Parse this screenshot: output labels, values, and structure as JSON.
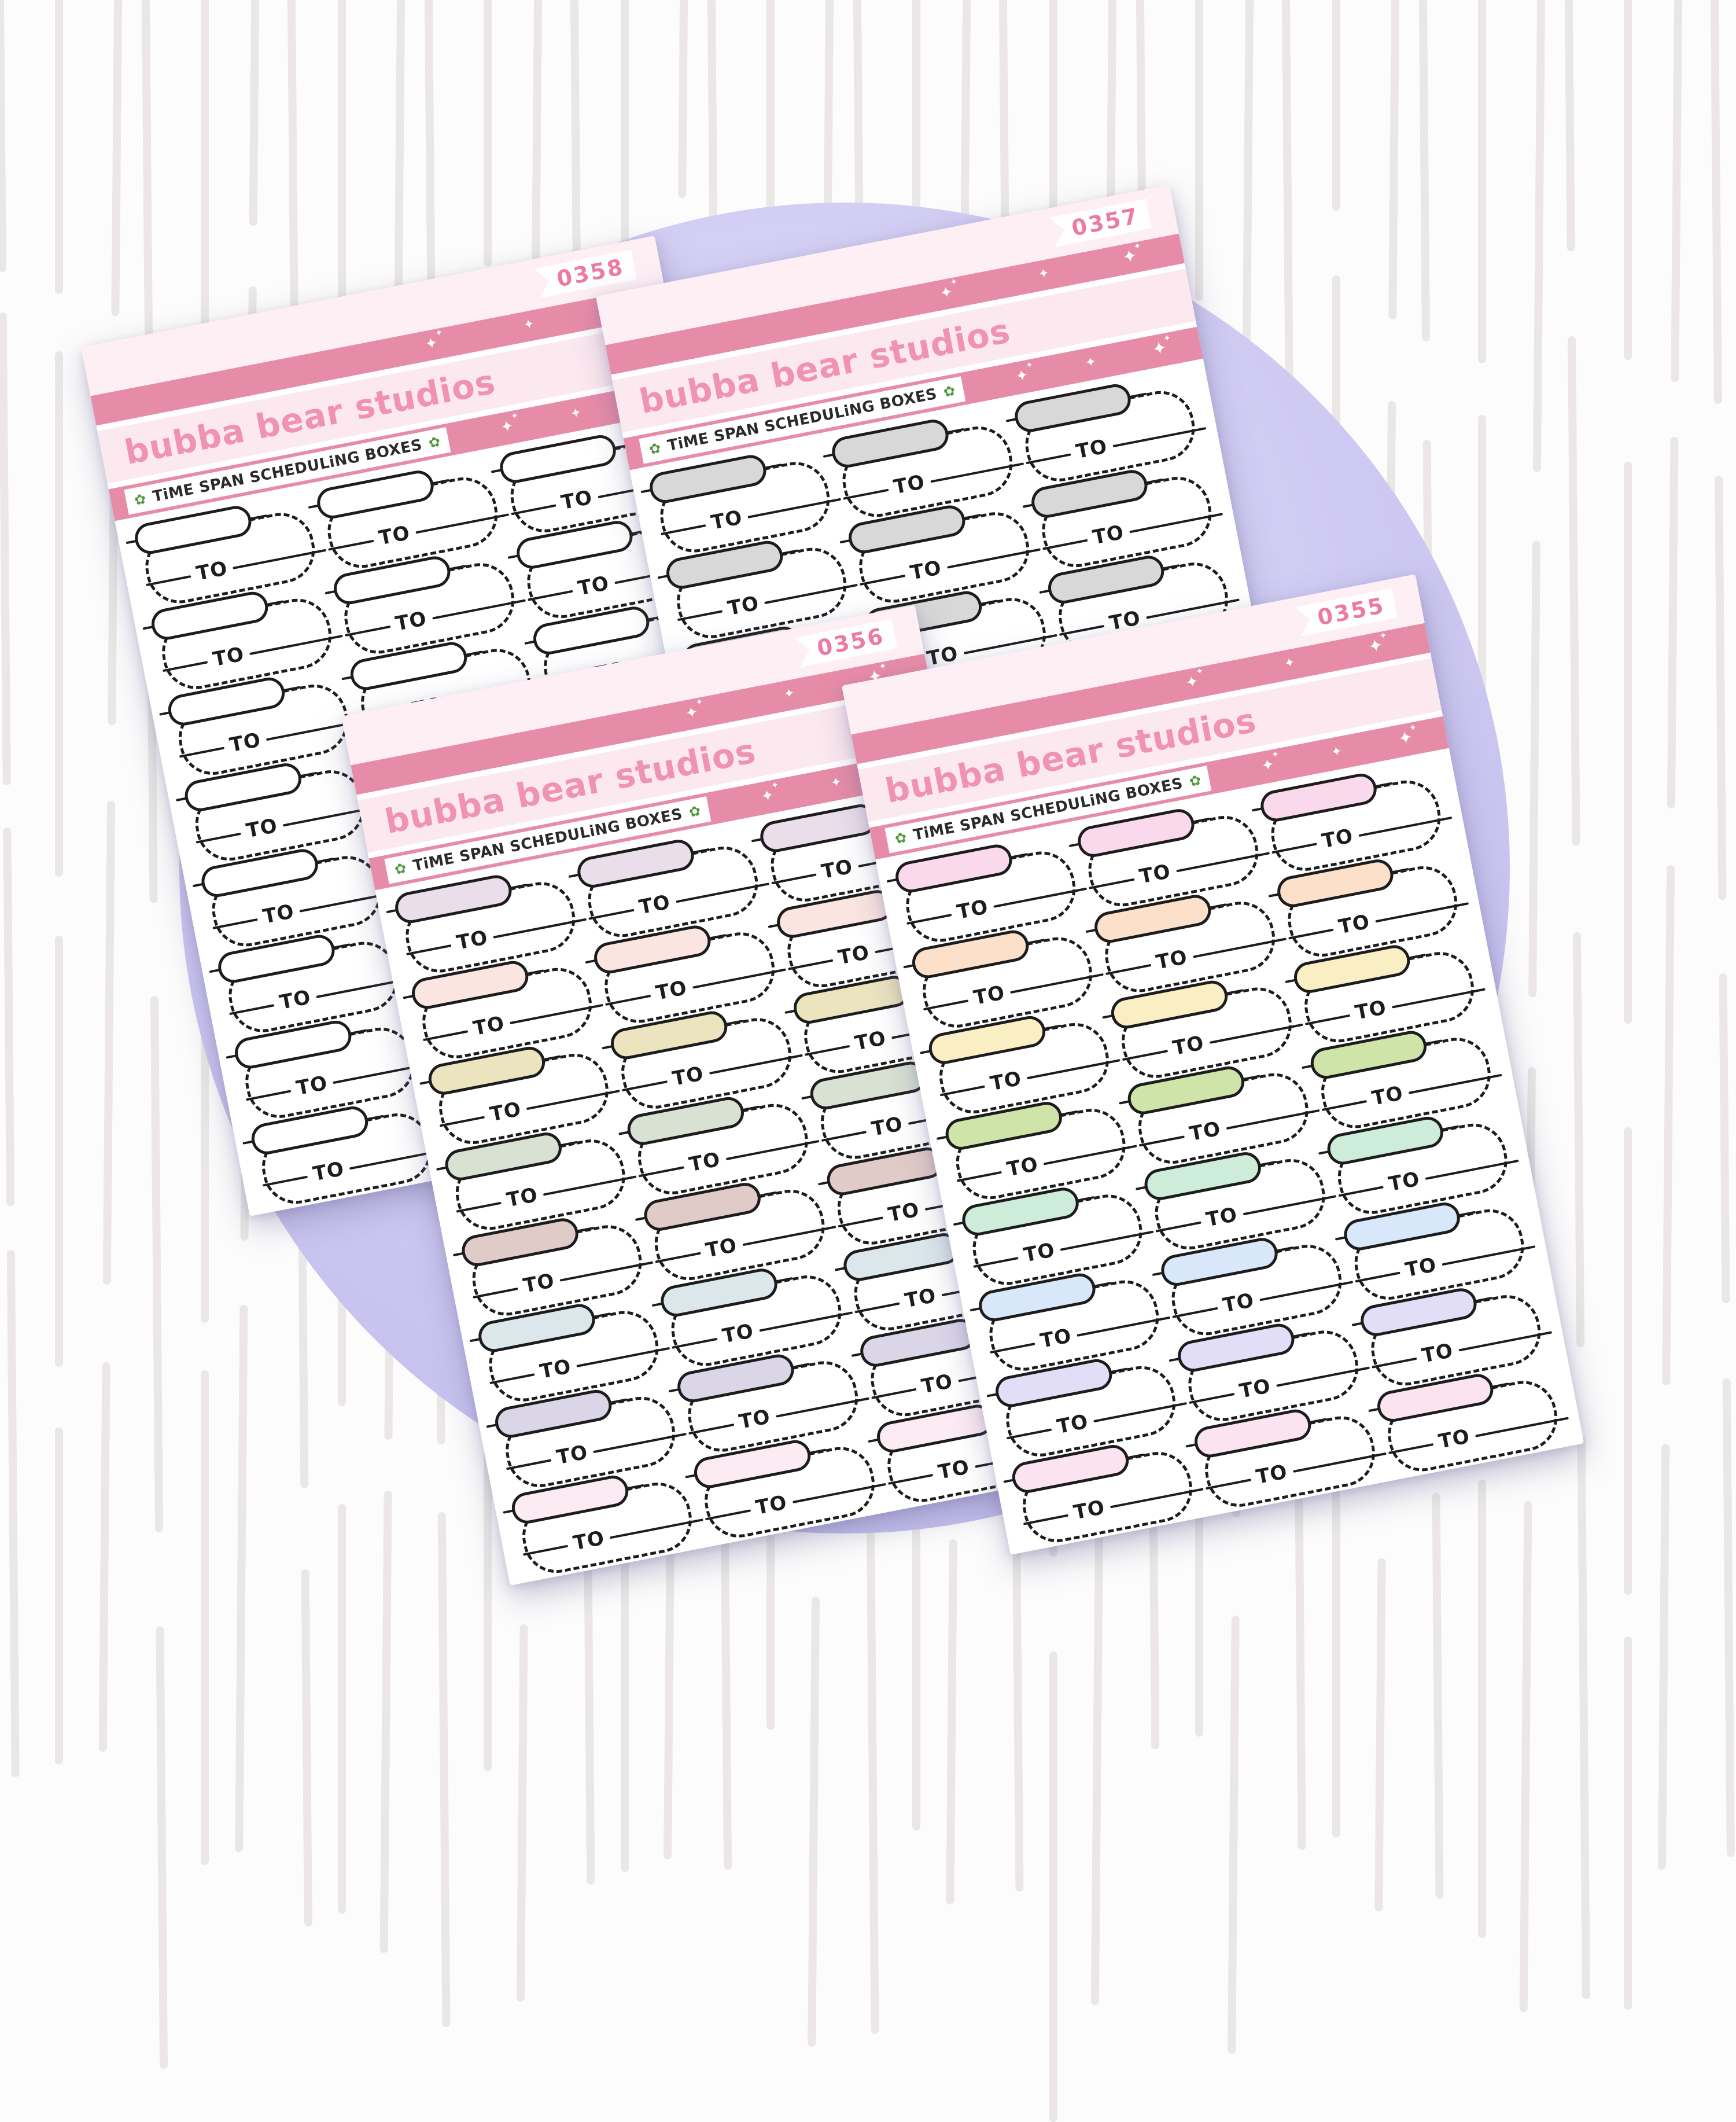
{
  "background": {
    "stripe_color": "#eae7e6",
    "circle_color_center": "#e2dff9",
    "circle_color_edge": "#c4bfee"
  },
  "brand": {
    "name": "bubba bear studios",
    "text_color": "#f092b2"
  },
  "subtitle": {
    "text": "TiME SPAN SCHEDULiNG BOXES",
    "flower_color": "#4f9a3c"
  },
  "sticker": {
    "label": "TO",
    "outline_color": "#1c1c1c"
  },
  "icons": {
    "sparkle": "✦",
    "flower": "✿"
  },
  "palette": {
    "sheet_margin": "#fdeff4",
    "band_light": "#fce8ef",
    "band_dark": "#e78ca8",
    "tag_number_color": "#ed7aa4"
  },
  "sheets": [
    {
      "number": "0358",
      "columns": 3,
      "rows": 8,
      "pill_colors": [
        "#ffffff",
        "#ffffff",
        "#ffffff",
        "#ffffff",
        "#ffffff",
        "#ffffff",
        "#ffffff",
        "#ffffff"
      ]
    },
    {
      "number": "0357",
      "columns": 3,
      "rows": 8,
      "pill_colors": [
        "#d8d8d8",
        "#d8d8d8",
        "#d8d8d8",
        "#d8d8d8",
        "#d8d8d8",
        "#d8d8d8",
        "#d8d8d8",
        "#d8d8d8"
      ]
    },
    {
      "number": "0356",
      "columns": 3,
      "rows": 8,
      "pill_colors": [
        "#eadeea",
        "#fbe5e1",
        "#ece4bf",
        "#d9e1d3",
        "#e1cbc8",
        "#dbe7eb",
        "#dbd5e8",
        "#fcebf3"
      ]
    },
    {
      "number": "0355",
      "columns": 3,
      "rows": 8,
      "pill_colors": [
        "#fbd9ec",
        "#fce0c9",
        "#faefc4",
        "#cfe4a9",
        "#cdecda",
        "#d8e7fa",
        "#e2def7",
        "#fbe3ef"
      ]
    }
  ]
}
